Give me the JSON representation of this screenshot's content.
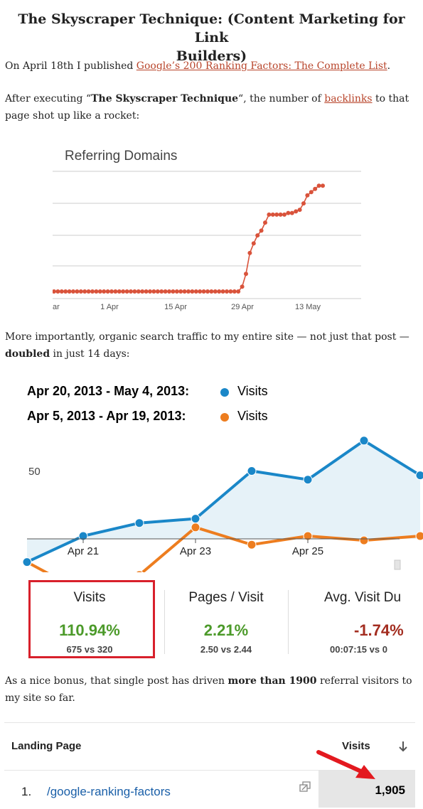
{
  "article": {
    "title_line1": "The Skyscraper Technique: (Content Marketing for Link",
    "title_line2": "Builders)",
    "p1_prefix": "On April 18th I published ",
    "p1_link": "Google’s 200 Ranking Factors: The Complete List",
    "p1_suffix": ".",
    "p2_prefix": "After executing “",
    "p2_bold": "The Skyscraper Technique",
    "p2_mid": "“, the number of ",
    "p2_link": "backlinks",
    "p2_suffix": " to that page shot up like a rocket:",
    "p3_text": "More importantly, organic search traffic to my entire site — not just that post — ",
    "p3_bold": "doubled",
    "p3_suffix": " in just 14 days:",
    "p4_prefix": "As a nice bonus, that single post has driven ",
    "p4_bold": "more than 1900",
    "p4_suffix": " referral visitors to my site so far."
  },
  "chart_data": [
    {
      "type": "line",
      "title": "Referring Domains",
      "x_ticks": [
        "1 Apr",
        "15 Apr",
        "29 Apr",
        "13 May"
      ],
      "x_edge_label": "ar",
      "color": "#d9533b",
      "grid": true,
      "series": [
        {
          "values": [
            0,
            0,
            0,
            0,
            0,
            0,
            0,
            0,
            0,
            0,
            0,
            0,
            0,
            0,
            0,
            0,
            0,
            0,
            0,
            0,
            0,
            0,
            0,
            0,
            0,
            0,
            0,
            0,
            0,
            0,
            0,
            0,
            0,
            0,
            0,
            0,
            0,
            0,
            0,
            0,
            0,
            0,
            0,
            0,
            0,
            0,
            0,
            0,
            0,
            3,
            11,
            24,
            30,
            35,
            38,
            43,
            48,
            48,
            48,
            48,
            48,
            49,
            49,
            50,
            51,
            55,
            60,
            62,
            64,
            66,
            66
          ]
        }
      ]
    },
    {
      "type": "area",
      "legend": [
        {
          "range": "Apr 20, 2013 - May 4, 2013:",
          "name": "Visits",
          "color": "#1a87c8"
        },
        {
          "range": "Apr 5, 2013 - Apr 19, 2013:",
          "name": "Visits",
          "color": "#ed7d1f"
        }
      ],
      "y_tick_label": "50",
      "y_tick_value": 50,
      "x_ticks": [
        "Apr 21",
        "Apr 23",
        "Apr 25"
      ],
      "series": [
        {
          "name": "Visits",
          "color": "#1a87c8",
          "values": [
            29,
            35,
            38,
            39,
            50,
            48,
            57,
            49
          ]
        },
        {
          "name": "Visits",
          "color": "#ed7d1f",
          "values": [
            29,
            22,
            26,
            37,
            33,
            35,
            34,
            35
          ]
        }
      ]
    }
  ],
  "metrics": [
    {
      "label": "Visits",
      "value": "110.94%",
      "sub": "675 vs 320",
      "color": "#4c9a2a"
    },
    {
      "label": "Pages / Visit",
      "value": "2.21%",
      "sub": "2.50 vs 2.44",
      "color": "#4c9a2a"
    },
    {
      "label": "Avg. Visit Du",
      "value": "-1.74%",
      "sub": "00:07:15 vs 0",
      "color": "#a32d20"
    }
  ],
  "table": {
    "col_page": "Landing Page",
    "col_visits": "Visits",
    "sort_icon": "arrow-down-icon",
    "rows": [
      {
        "num": "1.",
        "page": "/google-ranking-factors",
        "visits": "1,905"
      }
    ]
  }
}
